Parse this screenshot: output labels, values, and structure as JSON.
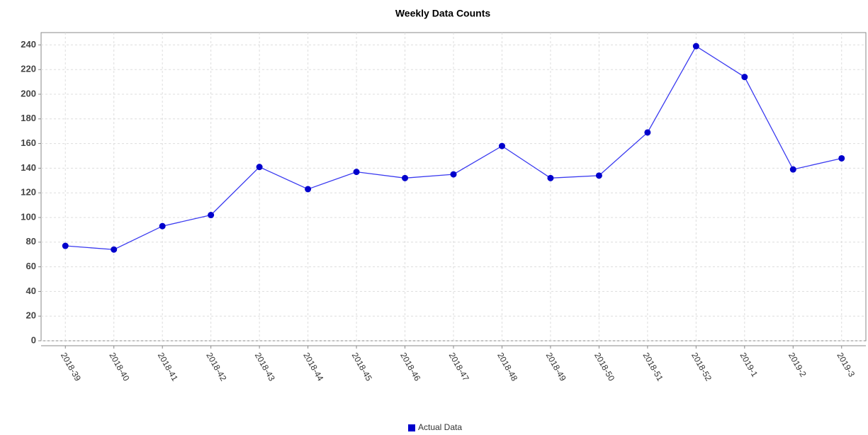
{
  "chart_data": {
    "type": "line",
    "title": "Weekly Data Counts",
    "categories": [
      "2018-39",
      "2018-40",
      "2018-41",
      "2018-42",
      "2018-43",
      "2018-44",
      "2018-45",
      "2018-46",
      "2018-47",
      "2018-48",
      "2018-49",
      "2018-50",
      "2018-51",
      "2018-52",
      "2019-1",
      "2019-2",
      "2019-3"
    ],
    "series": [
      {
        "name": "Actual Data",
        "color": "#0000cc",
        "values": [
          77,
          74,
          93,
          102,
          141,
          123,
          137,
          132,
          135,
          158,
          132,
          134,
          169,
          239,
          214,
          139,
          148
        ]
      }
    ],
    "ylim": [
      0,
      250
    ],
    "yticks": [
      0,
      20,
      40,
      60,
      80,
      100,
      120,
      140,
      160,
      180,
      200,
      220,
      240
    ],
    "grid": true,
    "legend": "bottom"
  }
}
